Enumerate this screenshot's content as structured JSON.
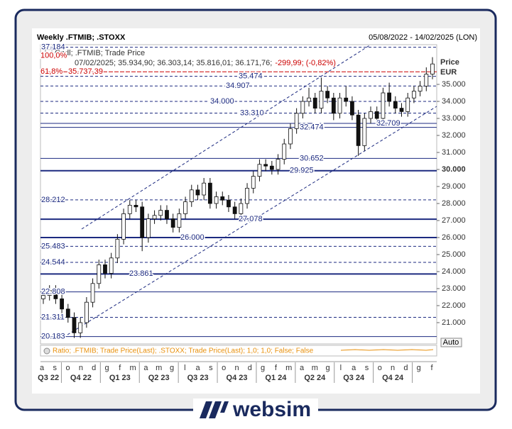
{
  "chart_data": {
    "type": "candlestick",
    "title": "Weekly .FTMIB; .STOXX",
    "date_range": "05/08/2022 - 14/02/2025 (LON)",
    "legend": {
      "series": "Cndl; .FTMIB; Trade Price",
      "last": "07/02/2025; 35.934,90; 36.303,14; 35.816,01; 36.171,76;",
      "change": "-299,99; (-0,82%)"
    },
    "y_label": "Price",
    "y_unit": "EUR",
    "ylim": [
      19.75,
      37.333
    ],
    "yticks": [
      {
        "value": 21,
        "label": "21.000"
      },
      {
        "value": 22,
        "label": "22.000"
      },
      {
        "value": 23,
        "label": "23.000"
      },
      {
        "value": 24,
        "label": "24.000"
      },
      {
        "value": 25,
        "label": "25.000"
      },
      {
        "value": 26,
        "label": "26.000"
      },
      {
        "value": 27,
        "label": "27.000"
      },
      {
        "value": 28,
        "label": "28.000"
      },
      {
        "value": 29,
        "label": "29.000"
      },
      {
        "value": 30,
        "label": "30.000",
        "bold": true
      },
      {
        "value": 31,
        "label": "31.000"
      },
      {
        "value": 32,
        "label": "32.000"
      },
      {
        "value": 33,
        "label": "33.000"
      },
      {
        "value": 34,
        "label": "34.000"
      },
      {
        "value": 35,
        "label": "35.000"
      }
    ],
    "color": "#111111",
    "up_fill": "#ffffff",
    "down_fill": "#111111",
    "candles": {
      "open": [
        22.4,
        22.6,
        22.9,
        22.4,
        21.8,
        21.3,
        20.4,
        21.0,
        22.2,
        23.3,
        24.4,
        23.9,
        24.8,
        25.9,
        27.4,
        27.9,
        27.8,
        26.0,
        27.1,
        27.3,
        27.6,
        27.1,
        26.6,
        27.4,
        28.1,
        28.8,
        28.5,
        29.2,
        28.0,
        28.4,
        28.2,
        27.8,
        27.4,
        28.0,
        28.9,
        29.6,
        30.3,
        30.2,
        30.0,
        30.6,
        31.5,
        32.4,
        33.3,
        34.0,
        34.2,
        33.6,
        34.6,
        34.2,
        33.3,
        34.2,
        34.0,
        33.2,
        31.4,
        33.0,
        33.4,
        33.0,
        34.5,
        34.0,
        33.6,
        33.4,
        34.2,
        34.6,
        34.9,
        35.6
      ],
      "high": [
        22.9,
        23.2,
        23.2,
        22.7,
        22.1,
        21.6,
        21.3,
        22.5,
        23.6,
        24.7,
        24.7,
        25.1,
        26.2,
        27.7,
        28.2,
        28.2,
        28.1,
        27.4,
        27.6,
        27.9,
        27.9,
        27.4,
        27.7,
        28.4,
        29.1,
        29.1,
        29.5,
        29.5,
        28.7,
        28.7,
        28.5,
        28.1,
        28.3,
        29.2,
        29.9,
        30.6,
        30.6,
        30.5,
        30.9,
        31.8,
        32.7,
        33.6,
        34.3,
        34.8,
        34.5,
        35.4,
        34.9,
        34.5,
        34.5,
        34.9,
        34.3,
        33.5,
        33.3,
        33.7,
        33.7,
        34.8,
        35.1,
        34.3,
        33.9,
        34.5,
        34.9,
        35.2,
        36.0,
        36.6
      ],
      "low": [
        22.1,
        22.3,
        22.1,
        21.5,
        21.0,
        20.1,
        20.1,
        20.7,
        21.9,
        23.0,
        23.6,
        23.6,
        24.5,
        25.6,
        27.1,
        27.5,
        25.2,
        25.7,
        26.8,
        27.0,
        26.8,
        26.3,
        26.3,
        27.1,
        27.8,
        28.2,
        28.2,
        27.7,
        27.7,
        27.9,
        27.5,
        27.1,
        27.1,
        27.7,
        28.6,
        29.3,
        29.9,
        29.7,
        29.7,
        30.3,
        31.2,
        32.1,
        33.0,
        33.7,
        33.3,
        33.3,
        33.9,
        32.9,
        33.0,
        33.7,
        32.9,
        30.8,
        31.1,
        32.7,
        32.7,
        32.7,
        33.7,
        33.3,
        33.1,
        33.1,
        33.9,
        34.3,
        34.6,
        35.3
      ],
      "close": [
        22.6,
        22.9,
        22.4,
        21.8,
        21.3,
        20.4,
        21.0,
        22.2,
        23.3,
        24.4,
        23.9,
        24.8,
        25.9,
        27.4,
        27.9,
        27.8,
        26.0,
        27.1,
        27.3,
        27.6,
        27.1,
        26.6,
        27.4,
        28.1,
        28.8,
        28.5,
        29.2,
        28.0,
        28.4,
        28.2,
        27.8,
        27.4,
        28.0,
        28.9,
        29.6,
        30.3,
        30.2,
        30.0,
        30.6,
        31.5,
        32.4,
        33.3,
        34.0,
        34.2,
        33.6,
        34.6,
        34.2,
        33.3,
        34.2,
        34.0,
        33.2,
        31.4,
        33.0,
        33.4,
        33.0,
        34.5,
        34.0,
        33.6,
        33.4,
        34.2,
        34.6,
        34.9,
        35.6,
        36.2
      ]
    },
    "months": [
      "a",
      "s",
      "o",
      "n",
      "d",
      "g",
      "f",
      "m",
      "a",
      "m",
      "g",
      "l",
      "a",
      "s",
      "o",
      "n",
      "d",
      "g",
      "f",
      "m",
      "a",
      "m",
      "g",
      "l",
      "a",
      "s",
      "o",
      "n",
      "d",
      "g",
      "f"
    ],
    "quarters": [
      "Q3 22",
      "Q4 22",
      "Q1 23",
      "Q2 23",
      "Q3 23",
      "Q4 23",
      "Q1 24",
      "Q2 24",
      "Q3 24",
      "Q4 24"
    ],
    "level_color": "#1c2a80",
    "levels": [
      {
        "value": 37.184,
        "style": "dashed"
      },
      {
        "value": 35.474,
        "style": "dashed"
      },
      {
        "value": 34.907,
        "style": "dashed"
      },
      {
        "value": 34,
        "label": "34.000",
        "style": "dashed"
      },
      {
        "value": 33.31,
        "label": "33.310",
        "style": "dashed"
      },
      {
        "value": 32.709,
        "style": "solid"
      },
      {
        "value": 32.474,
        "style": "solid"
      },
      {
        "value": 30.652,
        "style": "solid"
      },
      {
        "value": 29.925,
        "style": "thick"
      },
      {
        "value": 28.212,
        "style": "dashed"
      },
      {
        "value": 27.078,
        "style": "thick"
      },
      {
        "value": 26,
        "label": "26.000",
        "style": "thick"
      },
      {
        "value": 25.483,
        "style": "dashed"
      },
      {
        "value": 24.544,
        "style": "dashed"
      },
      {
        "value": 23.861,
        "style": "thick"
      },
      {
        "value": 22.808,
        "style": "solid"
      },
      {
        "value": 21.311,
        "style": "dashed"
      },
      {
        "value": 20.183,
        "style": "solid"
      }
    ],
    "fib_color": "#cc0000",
    "fibonacci": [
      {
        "value": 37.184,
        "label": "100,0%"
      },
      {
        "value": 35.73739,
        "label": "61,8%",
        "price_label": "35.737,39"
      }
    ],
    "ratio_panel": {
      "text": "Ratio; .FTMIB; Trade Price(Last); .STOXX; Trade Price(Last);  1,0; 1,0; False; False",
      "color": "#e8900c"
    },
    "scale_button": "Auto"
  },
  "branding": {
    "logo": "websim"
  }
}
